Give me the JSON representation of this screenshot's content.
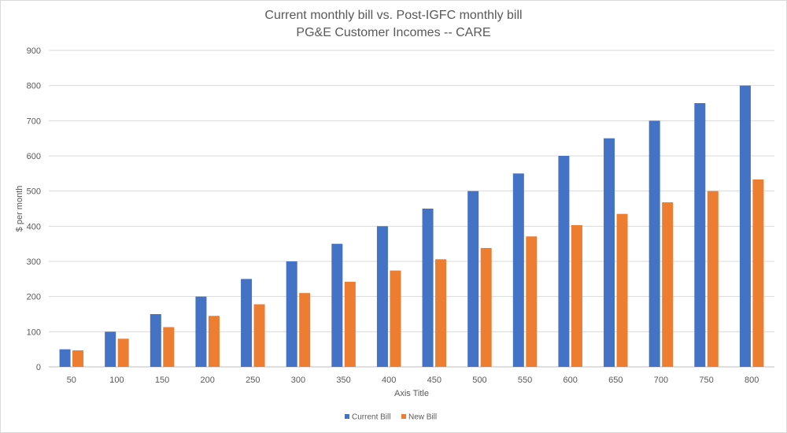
{
  "chart_data": {
    "type": "bar",
    "title": "Current monthly bill vs. Post-IGFC monthly bill",
    "subtitle": "PG&E Customer Incomes -- CARE",
    "xlabel": "Axis Title",
    "ylabel": "$ per month",
    "ylim": [
      0,
      900
    ],
    "yticks": [
      0,
      100,
      200,
      300,
      400,
      500,
      600,
      700,
      800,
      900
    ],
    "grid": true,
    "legend_position": "bottom",
    "categories": [
      "50",
      "100",
      "150",
      "200",
      "250",
      "300",
      "350",
      "400",
      "450",
      "500",
      "550",
      "600",
      "650",
      "700",
      "750",
      "800"
    ],
    "series": [
      {
        "name": "Current Bill",
        "color": "#4472c4",
        "values": [
          50,
          100,
          150,
          200,
          250,
          300,
          350,
          400,
          450,
          500,
          550,
          600,
          650,
          700,
          750,
          800
        ]
      },
      {
        "name": "New Bill",
        "color": "#ed7d31",
        "values": [
          47,
          80,
          113,
          145,
          178,
          210,
          242,
          274,
          306,
          338,
          371,
          403,
          435,
          468,
          500,
          533
        ]
      }
    ]
  }
}
